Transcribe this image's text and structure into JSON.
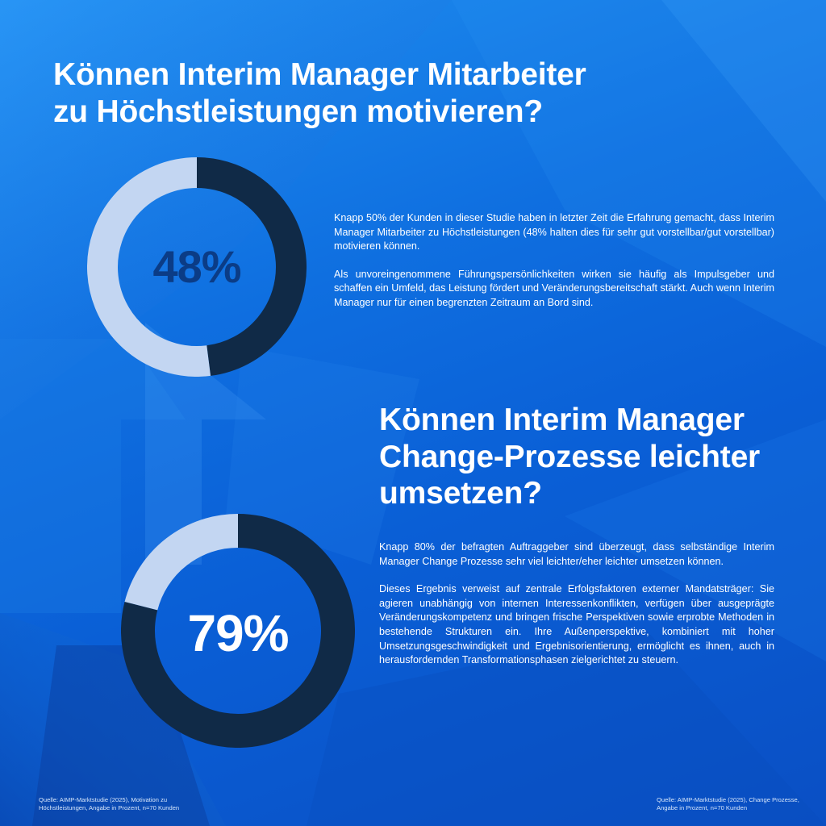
{
  "section1": {
    "title_line1": "Können Interim Manager Mitarbeiter",
    "title_line2": "zu Höchstleistungen motivieren?",
    "paragraph1": "Knapp 50% der Kunden in dieser Studie haben in letzter Zeit die Erfahrung gemacht, dass Interim Manager Mitarbeiter zu Höchstleistungen (48% halten dies für sehr gut vorstellbar/gut vorstellbar) motivieren können.",
    "paragraph2": "Als unvoreingenommene Führungspersönlichkeiten wirken sie häufig als Impulsgeber und schaffen ein Umfeld, das Leistung fördert und Veränderungsbereitschaft stärkt. Auch wenn Interim Manager nur für einen begrenzten Zeitraum an Bord sind.",
    "source_line1": "Quelle: AIMP-Marktstudie (2025), Motivation zu",
    "source_line2": "Höchstleistungen, Angabe in Prozent, n=70 Kunden"
  },
  "section2": {
    "title_line1": "Können Interim Manager",
    "title_line2": "Change-Prozesse leichter",
    "title_line3": "umsetzen?",
    "paragraph1": "Knapp 80% der befragten Auftraggeber sind überzeugt, dass selbständige Interim Manager Change Prozesse sehr viel leichter/eher leichter umsetzen können.",
    "paragraph2": "Dieses Ergebnis verweist auf zentrale Erfolgsfaktoren externer Mandatsträger: Sie agieren unabhängig von internen Interessenkonflikten, verfügen über ausgeprägte Veränderungskompetenz und bringen frische Perspektiven sowie erprobte Methoden in bestehende Strukturen ein. Ihre Außenperspektive, kombiniert mit hoher Umsetzungsgeschwindigkeit und Ergebnisorientierung, ermöglicht es ihnen, auch in herausfordernden Transformationsphasen zielgerichtet zu steuern.",
    "source_line1": "Quelle: AIMP-Marktstudie (2025), Change Prozesse,",
    "source_line2": "Angabe in Prozent, n=70 Kunden"
  },
  "chart_data": [
    {
      "type": "pie",
      "donut": true,
      "values": [
        48,
        52
      ],
      "center_label": "48%",
      "colors": [
        "#102a47",
        "#c3d6f2"
      ],
      "label_color": "#0b3c86"
    },
    {
      "type": "pie",
      "donut": true,
      "values": [
        79,
        21
      ],
      "center_label": "79%",
      "colors": [
        "#102a47",
        "#c3d6f2"
      ],
      "label_color": "#ffffff"
    }
  ]
}
